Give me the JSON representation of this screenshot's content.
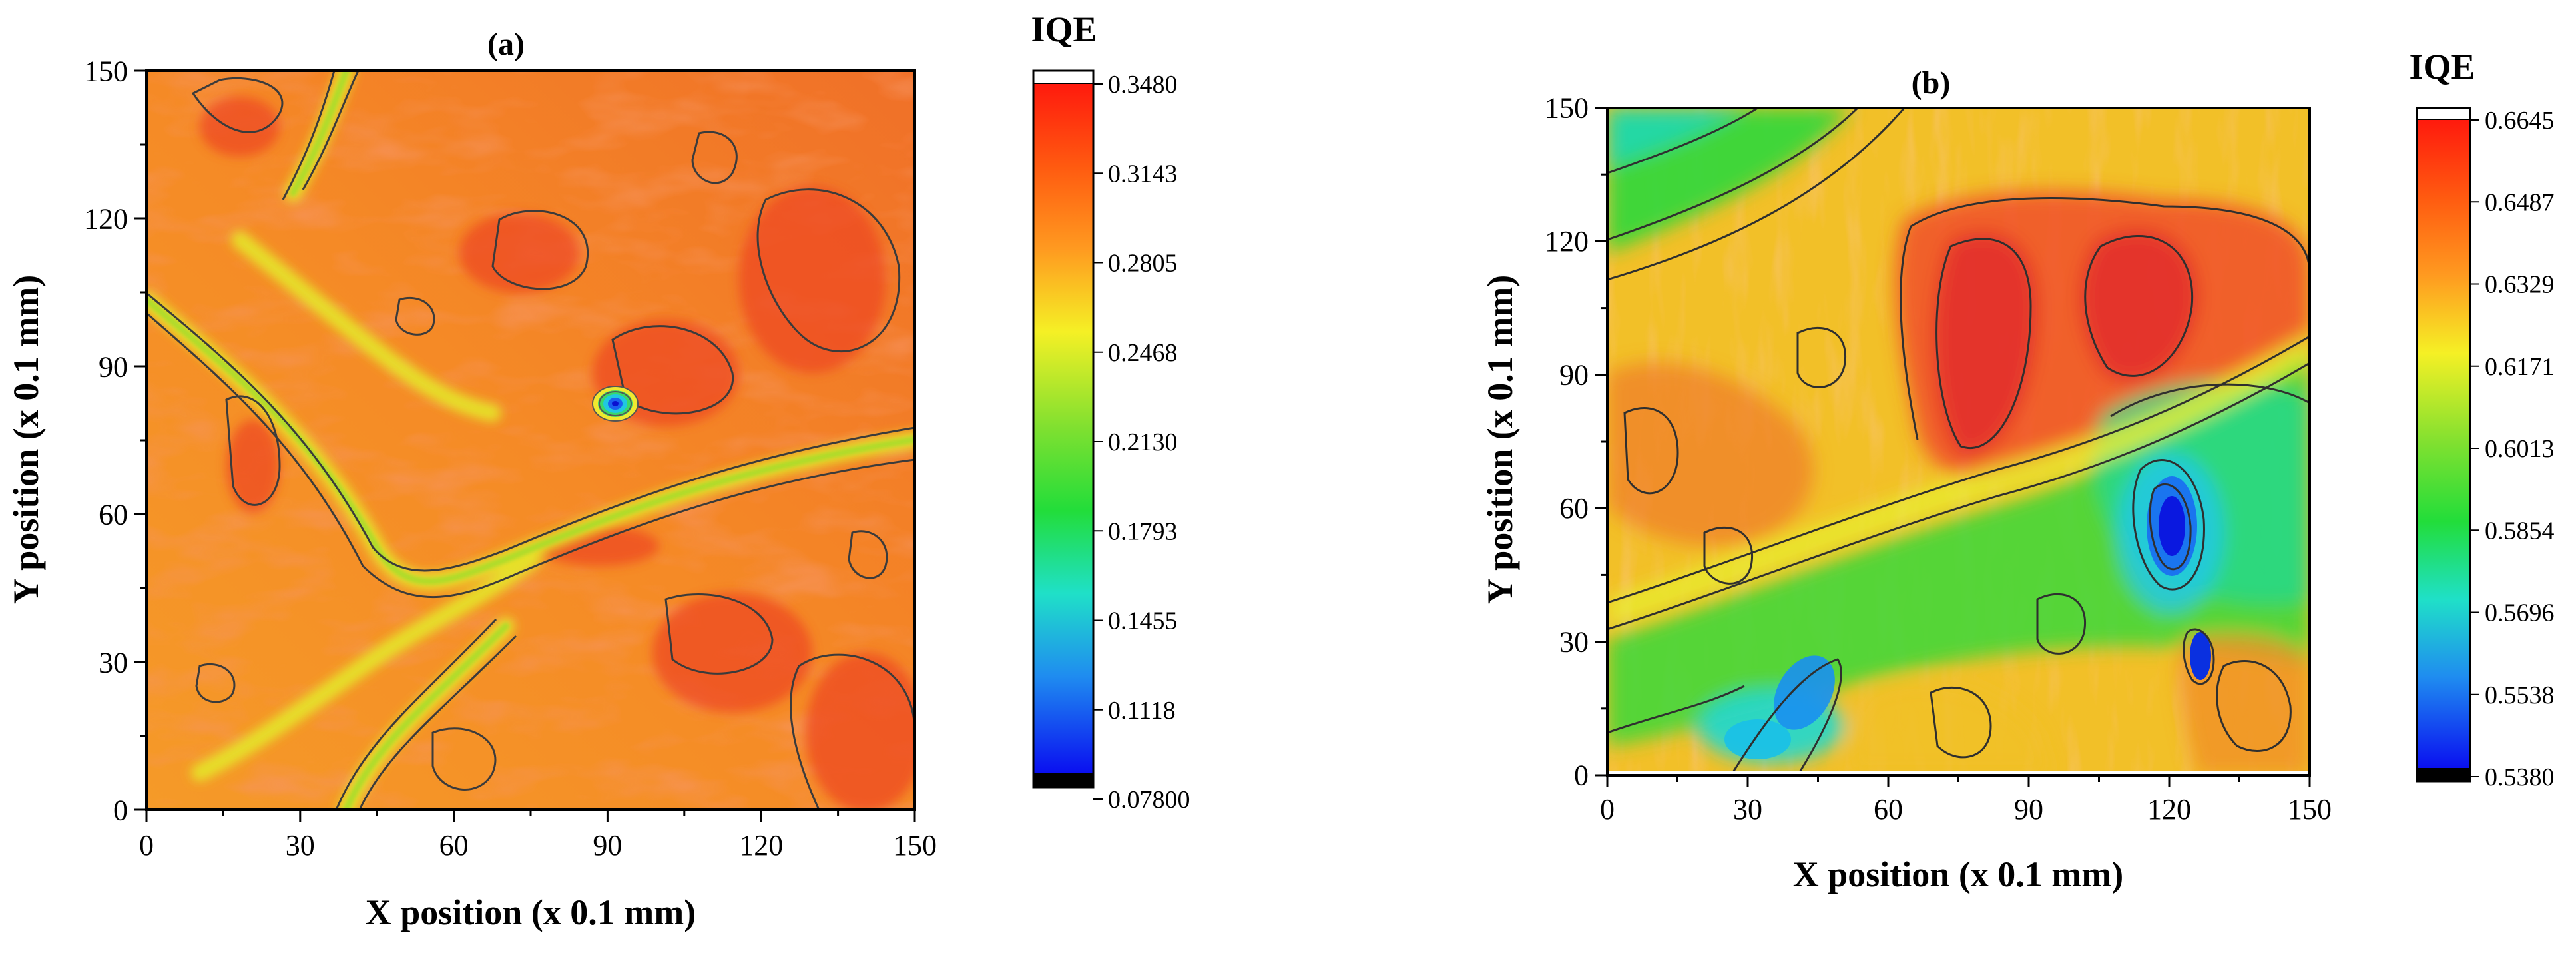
{
  "chart_data": [
    {
      "type": "heatmap",
      "panel_label": "(a)",
      "xlabel": "X position (x 0.1 mm)",
      "ylabel": "Y position (x 0.1 mm)",
      "xlim": [
        0,
        150
      ],
      "ylim": [
        0,
        150
      ],
      "xticks": [
        "0",
        "30",
        "60",
        "90",
        "120",
        "150"
      ],
      "yticks": [
        "0",
        "30",
        "60",
        "90",
        "120",
        "150"
      ],
      "colorbar": {
        "title": "IQE",
        "ticks": [
          "0.3480",
          "0.3143",
          "0.2805",
          "0.2468",
          "0.2130",
          "0.1793",
          "0.1455",
          "0.1118",
          "0.07800"
        ],
        "min": 0.078,
        "max": 0.348
      }
    },
    {
      "type": "heatmap",
      "panel_label": "(b)",
      "xlabel": "X position (x 0.1 mm)",
      "ylabel": "Y position (x 0.1 mm)",
      "xlim": [
        0,
        150
      ],
      "ylim": [
        0,
        150
      ],
      "xticks": [
        "0",
        "30",
        "60",
        "90",
        "120",
        "150"
      ],
      "yticks": [
        "0",
        "30",
        "60",
        "90",
        "120",
        "150"
      ],
      "colorbar": {
        "title": "IQE",
        "ticks": [
          "0.6645",
          "0.6487",
          "0.6329",
          "0.6171",
          "0.6013",
          "0.5854",
          "0.5696",
          "0.5538",
          "0.5380"
        ],
        "min": 0.538,
        "max": 0.6645
      }
    }
  ]
}
